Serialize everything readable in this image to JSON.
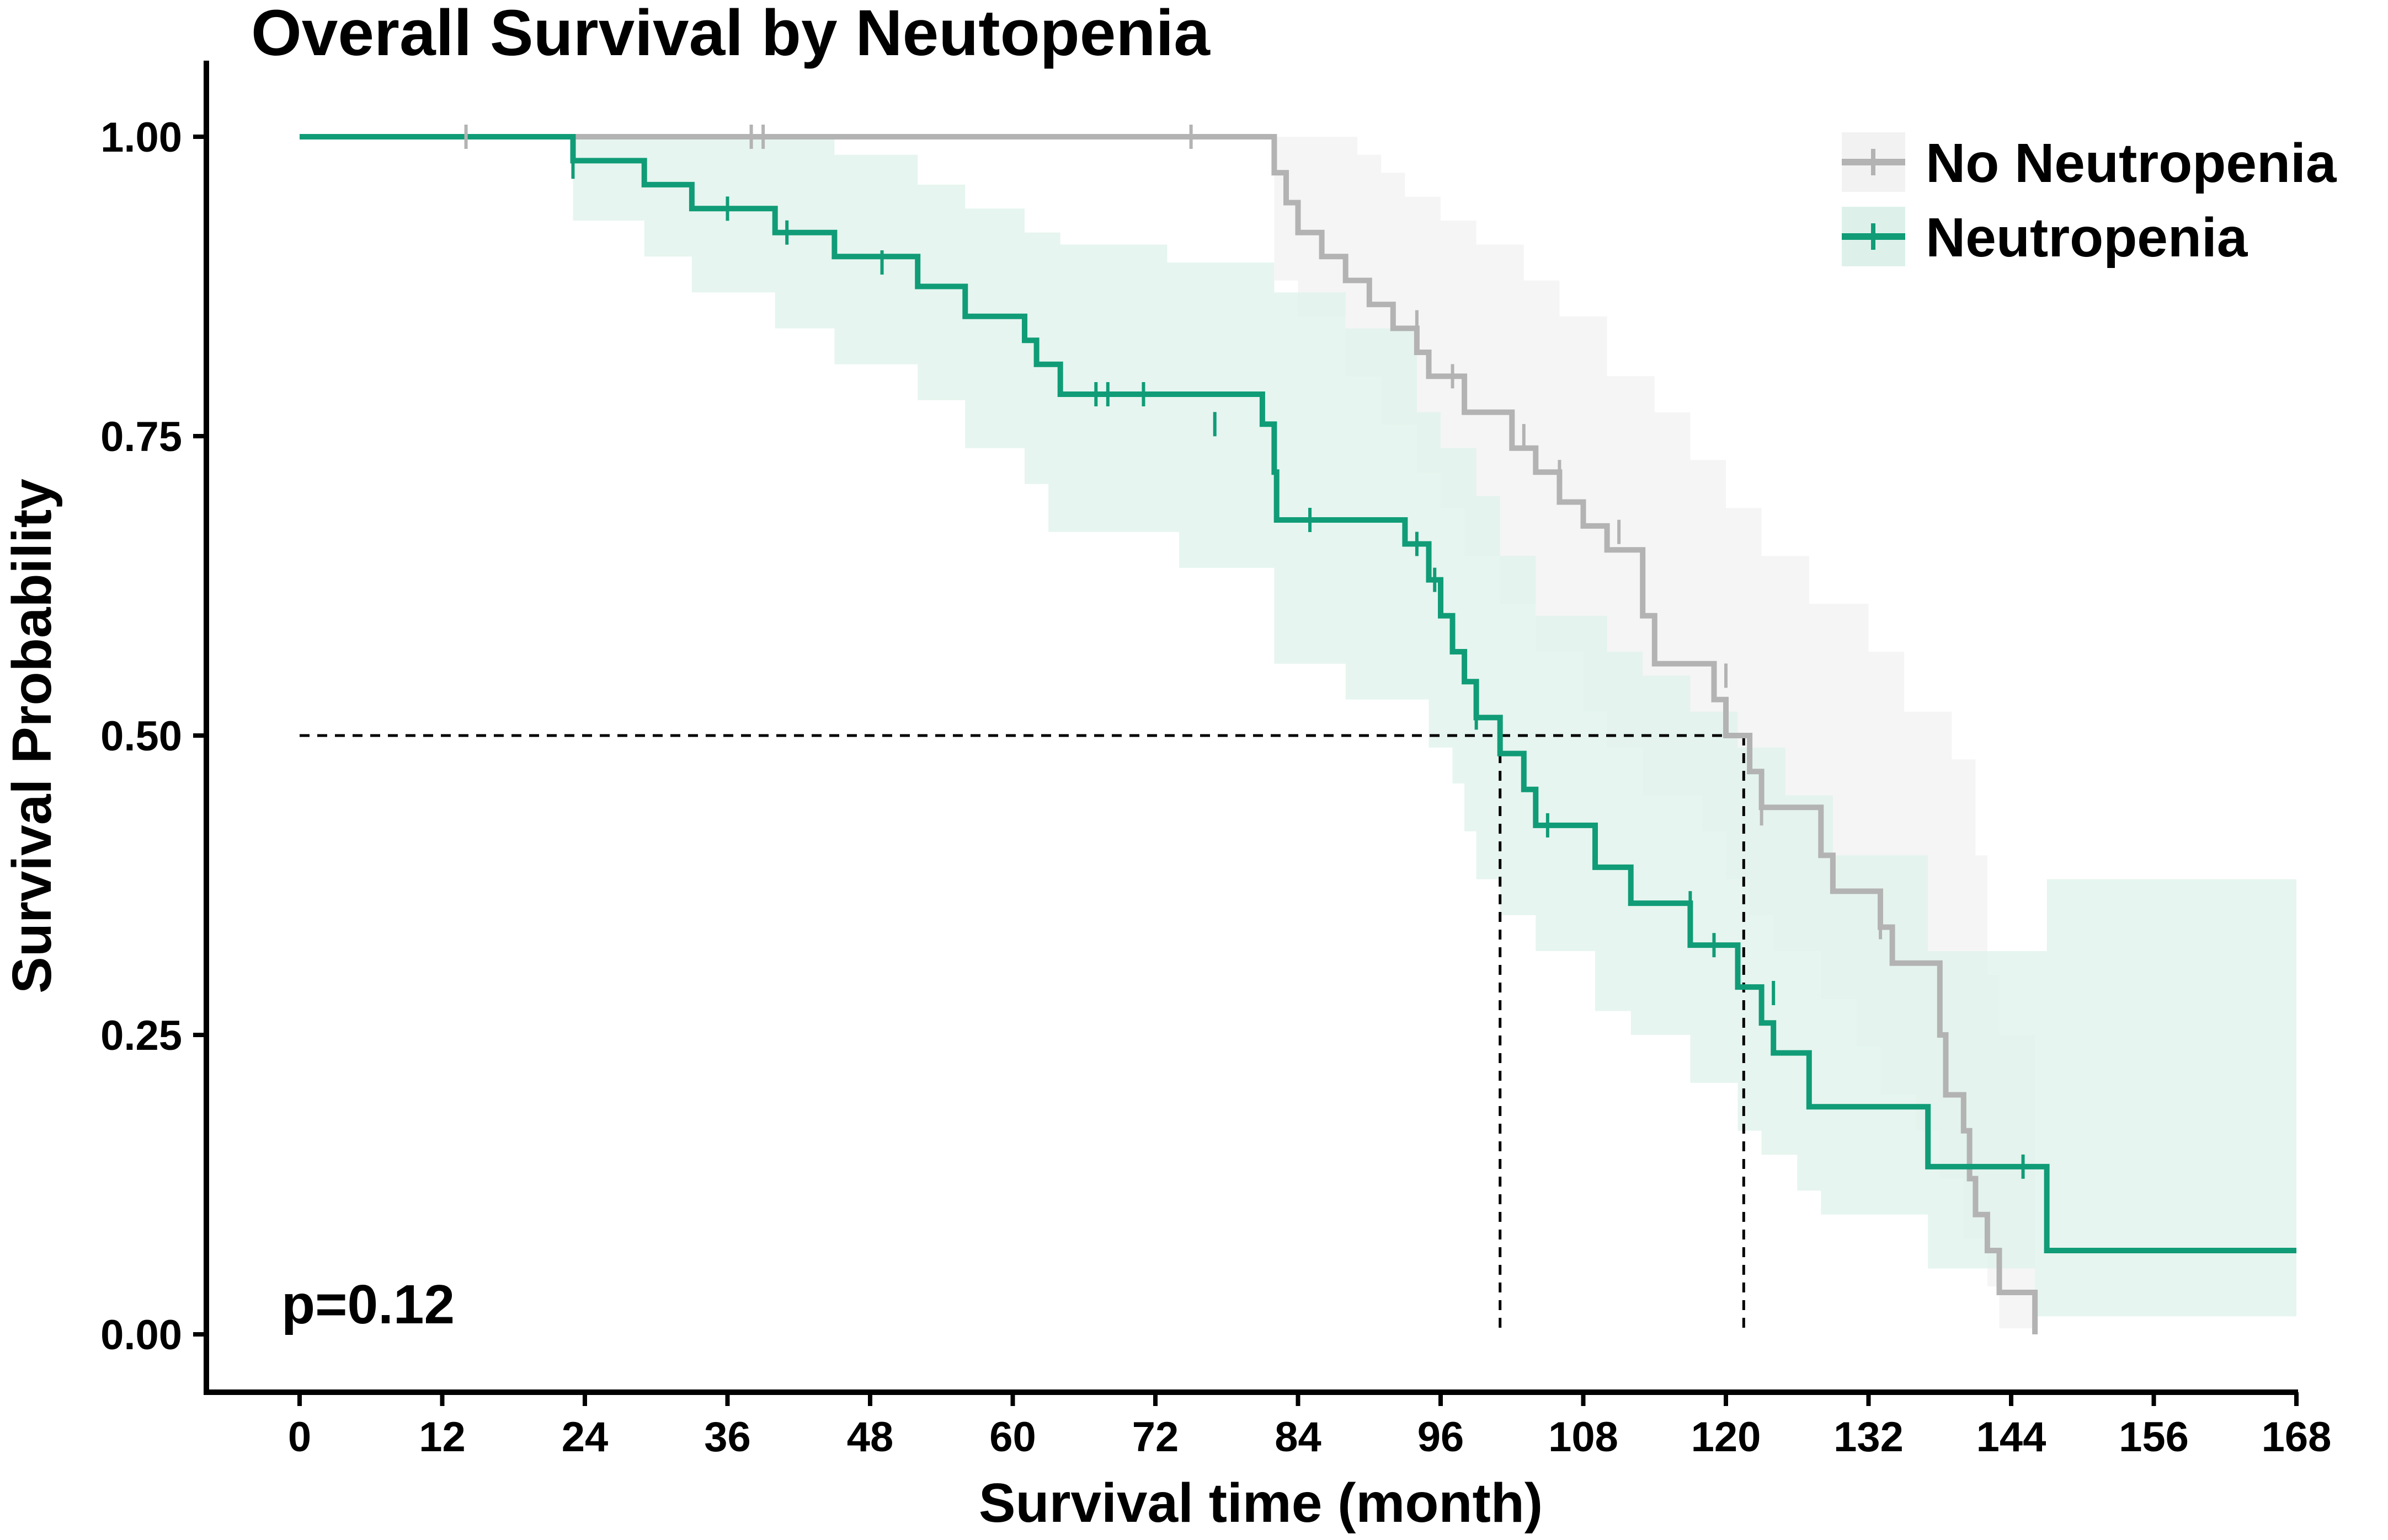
{
  "chart_data": {
    "type": "line",
    "subtype": "kaplan-meier",
    "title": "Overall Survival by Neutopenia",
    "xlabel": "Survival time (month)",
    "ylabel": "Survival Probability",
    "xlim": [
      0,
      168
    ],
    "ylim": [
      0,
      1
    ],
    "x_ticks": [
      0,
      12,
      24,
      36,
      48,
      60,
      72,
      84,
      96,
      108,
      120,
      132,
      144,
      156,
      168
    ],
    "x_tick_labels": [
      "0",
      "12",
      "24",
      "36",
      "48",
      "60",
      "72",
      "84",
      "96",
      "108",
      "120",
      "132",
      "144",
      "156",
      "168"
    ],
    "y_ticks": [
      0,
      0.25,
      0.5,
      0.75,
      1.0
    ],
    "y_tick_labels": [
      "0.00",
      "0.25",
      "0.50",
      "0.75",
      "1.00"
    ],
    "annotation": "p=0.12",
    "legend_position": "top-right",
    "median_line": {
      "y": 0.5,
      "medians": [
        101,
        121.5
      ]
    },
    "series": [
      {
        "name": "No Neutropenia",
        "color": "#b3b3b3",
        "band_color": "#f2f2f2",
        "steps": [
          [
            0,
            1.0
          ],
          [
            82,
            0.97
          ],
          [
            83,
            0.945
          ],
          [
            84,
            0.92
          ],
          [
            86,
            0.9
          ],
          [
            88,
            0.88
          ],
          [
            90,
            0.86
          ],
          [
            92,
            0.84
          ],
          [
            94,
            0.82
          ],
          [
            95,
            0.8
          ],
          [
            98,
            0.77
          ],
          [
            102,
            0.74
          ],
          [
            104,
            0.72
          ],
          [
            106,
            0.695
          ],
          [
            108,
            0.675
          ],
          [
            110,
            0.655
          ],
          [
            113,
            0.6
          ],
          [
            114,
            0.56
          ],
          [
            119,
            0.53
          ],
          [
            120,
            0.5
          ],
          [
            122,
            0.47
          ],
          [
            123,
            0.44
          ],
          [
            128,
            0.4
          ],
          [
            129,
            0.37
          ],
          [
            133,
            0.34
          ],
          [
            134,
            0.31
          ],
          [
            138,
            0.25
          ],
          [
            138.5,
            0.2
          ],
          [
            140,
            0.17
          ],
          [
            140.5,
            0.13
          ],
          [
            141,
            0.1
          ],
          [
            142,
            0.07
          ],
          [
            143,
            0.035
          ],
          [
            146,
            0.0
          ],
          [
            146,
            0.0
          ]
        ],
        "lower": [
          [
            0,
            1.0
          ],
          [
            82,
            0.88
          ],
          [
            84,
            0.85
          ],
          [
            88,
            0.8
          ],
          [
            91,
            0.76
          ],
          [
            94,
            0.72
          ],
          [
            96,
            0.69
          ],
          [
            98,
            0.65
          ],
          [
            101,
            0.61
          ],
          [
            104,
            0.57
          ],
          [
            108,
            0.52
          ],
          [
            110,
            0.49
          ],
          [
            113,
            0.45
          ],
          [
            118,
            0.42
          ],
          [
            120,
            0.38
          ],
          [
            122,
            0.35
          ],
          [
            124,
            0.32
          ],
          [
            128,
            0.28
          ],
          [
            131,
            0.24
          ],
          [
            133,
            0.2
          ],
          [
            136,
            0.17
          ],
          [
            138,
            0.13
          ],
          [
            140,
            0.08
          ],
          [
            142,
            0.04
          ],
          [
            143,
            0.005
          ],
          [
            146,
            0.005
          ]
        ],
        "upper": [
          [
            0,
            1.0
          ],
          [
            84,
            1.0
          ],
          [
            89,
            0.985
          ],
          [
            91,
            0.97
          ],
          [
            93,
            0.95
          ],
          [
            96,
            0.93
          ],
          [
            99,
            0.91
          ],
          [
            103,
            0.88
          ],
          [
            106,
            0.85
          ],
          [
            110,
            0.8
          ],
          [
            114,
            0.77
          ],
          [
            117,
            0.73
          ],
          [
            120,
            0.69
          ],
          [
            123,
            0.65
          ],
          [
            127,
            0.61
          ],
          [
            132,
            0.57
          ],
          [
            135,
            0.52
          ],
          [
            139,
            0.48
          ],
          [
            141,
            0.4
          ],
          [
            142,
            0.3
          ],
          [
            143,
            0.25
          ],
          [
            146,
            0.25
          ]
        ],
        "censored": [
          [
            14,
            1.0
          ],
          [
            38,
            1.0
          ],
          [
            39,
            1.0
          ],
          [
            75,
            1.0
          ],
          [
            90,
            0.87
          ],
          [
            94,
            0.845
          ],
          [
            97,
            0.8
          ],
          [
            103,
            0.75
          ],
          [
            106,
            0.72
          ],
          [
            111,
            0.67
          ],
          [
            120,
            0.55
          ],
          [
            123,
            0.435
          ],
          [
            133,
            0.34
          ],
          [
            138,
            0.27
          ]
        ]
      },
      {
        "name": "Neutropenia",
        "color": "#109c77",
        "band_color": "#ddf1ea",
        "steps": [
          [
            0,
            1.0
          ],
          [
            23,
            0.98
          ],
          [
            29,
            0.96
          ],
          [
            33,
            0.94
          ],
          [
            40,
            0.92
          ],
          [
            45,
            0.9
          ],
          [
            52,
            0.875
          ],
          [
            56,
            0.85
          ],
          [
            61,
            0.83
          ],
          [
            62,
            0.81
          ],
          [
            64,
            0.785
          ],
          [
            81,
            0.76
          ],
          [
            82,
            0.72
          ],
          [
            82.2,
            0.68
          ],
          [
            93,
            0.66
          ],
          [
            95,
            0.63
          ],
          [
            96,
            0.6
          ],
          [
            97,
            0.57
          ],
          [
            98,
            0.545
          ],
          [
            99,
            0.515
          ],
          [
            101,
            0.485
          ],
          [
            103,
            0.455
          ],
          [
            104,
            0.425
          ],
          [
            109,
            0.39
          ],
          [
            112,
            0.36
          ],
          [
            117,
            0.325
          ],
          [
            121,
            0.29
          ],
          [
            123,
            0.26
          ],
          [
            124,
            0.235
          ],
          [
            127,
            0.19
          ],
          [
            137,
            0.14
          ],
          [
            147,
            0.07
          ],
          [
            168,
            0.07
          ]
        ],
        "lower": [
          [
            0,
            1.0
          ],
          [
            23,
            0.93
          ],
          [
            29,
            0.9
          ],
          [
            33,
            0.87
          ],
          [
            40,
            0.84
          ],
          [
            45,
            0.81
          ],
          [
            52,
            0.78
          ],
          [
            56,
            0.74
          ],
          [
            61,
            0.71
          ],
          [
            63,
            0.67
          ],
          [
            64,
            0.67
          ],
          [
            74,
            0.64
          ],
          [
            82,
            0.56
          ],
          [
            88,
            0.53
          ],
          [
            95,
            0.49
          ],
          [
            97,
            0.46
          ],
          [
            98,
            0.42
          ],
          [
            99,
            0.38
          ],
          [
            101,
            0.35
          ],
          [
            104,
            0.32
          ],
          [
            109,
            0.27
          ],
          [
            112,
            0.25
          ],
          [
            117,
            0.21
          ],
          [
            121,
            0.17
          ],
          [
            123,
            0.15
          ],
          [
            126,
            0.12
          ],
          [
            128,
            0.1
          ],
          [
            137,
            0.055
          ],
          [
            146,
            0.015
          ],
          [
            168,
            0.015
          ]
        ],
        "upper": [
          [
            0,
            1.0
          ],
          [
            29,
            1.0
          ],
          [
            45,
            0.985
          ],
          [
            52,
            0.96
          ],
          [
            56,
            0.94
          ],
          [
            61,
            0.92
          ],
          [
            64,
            0.91
          ],
          [
            73,
            0.895
          ],
          [
            82,
            0.87
          ],
          [
            88,
            0.84
          ],
          [
            94,
            0.77
          ],
          [
            96,
            0.74
          ],
          [
            99,
            0.7
          ],
          [
            101,
            0.65
          ],
          [
            104,
            0.6
          ],
          [
            110,
            0.57
          ],
          [
            113,
            0.55
          ],
          [
            117,
            0.52
          ],
          [
            121,
            0.49
          ],
          [
            125,
            0.45
          ],
          [
            129,
            0.4
          ],
          [
            137,
            0.32
          ],
          [
            147,
            0.38
          ],
          [
            168,
            0.38
          ]
        ],
        "censored": [
          [
            23,
            0.975
          ],
          [
            36,
            0.94
          ],
          [
            41,
            0.92
          ],
          [
            49,
            0.895
          ],
          [
            67,
            0.785
          ],
          [
            68,
            0.785
          ],
          [
            71,
            0.785
          ],
          [
            77,
            0.76
          ],
          [
            85,
            0.68
          ],
          [
            94,
            0.66
          ],
          [
            95.5,
            0.63
          ],
          [
            99,
            0.515
          ],
          [
            105,
            0.425
          ],
          [
            117,
            0.36
          ],
          [
            119,
            0.325
          ],
          [
            124,
            0.285
          ],
          [
            145,
            0.14
          ]
        ]
      }
    ]
  }
}
